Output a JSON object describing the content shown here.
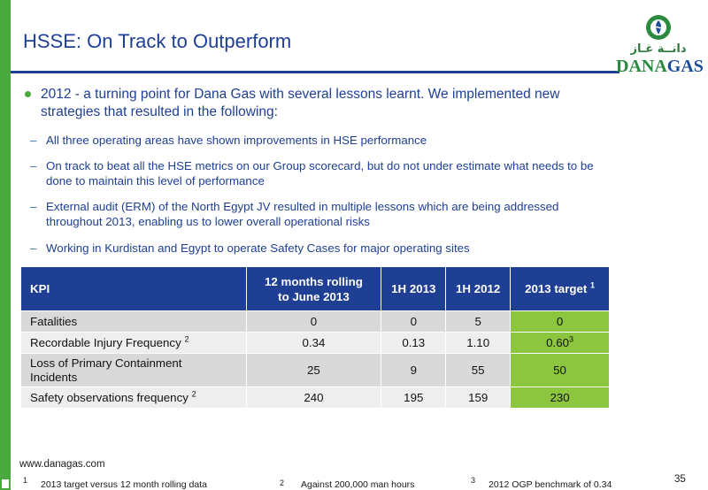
{
  "slide": {
    "title": "HSSE: On Track to Outperform",
    "page_number": "35",
    "website": "www.danagas.com",
    "colors": {
      "title_blue": "#1e3f93",
      "accent_green": "#4aa93d",
      "target_green": "#8cc63f"
    }
  },
  "logo": {
    "arabic": "دانــة غـاز",
    "word_dana": "DANA",
    "word_gas": "GAS"
  },
  "bullets": {
    "main": "2012 - a turning point for Dana Gas with several lessons learnt. We implemented new strategies that resulted in the following:",
    "dash": "–",
    "sub": [
      "All three operating areas have shown improvements in HSE performance",
      "On track to beat all the HSE metrics on our Group scorecard, but do not under estimate what needs to be done to maintain this level of performance",
      "External audit (ERM) of the North Egypt JV resulted in multiple lessons which are being addressed throughout 2013, enabling us to lower overall operational risks",
      "Working in Kurdistan and Egypt to operate Safety Cases for major operating sites"
    ]
  },
  "table": {
    "headers": {
      "kpi": "KPI",
      "rolling_line1": "12 months rolling",
      "rolling_line2": "to June 2013",
      "h1_2013": "1H 2013",
      "h1_2012": "1H 2012",
      "target": "2013 target",
      "target_sup": "1"
    },
    "rows": [
      {
        "kpi": "Fatalities",
        "kpi_sup": "",
        "rolling": "0",
        "h1_2013": "0",
        "h1_2012": "5",
        "target": "0",
        "target_sup": ""
      },
      {
        "kpi": "Recordable Injury Frequency",
        "kpi_sup": "2",
        "rolling": "0.34",
        "h1_2013": "0.13",
        "h1_2012": "1.10",
        "target": "0.60",
        "target_sup": "3"
      },
      {
        "kpi_line1": "Loss of Primary Containment",
        "kpi_line2": "Incidents",
        "rolling": "25",
        "h1_2013": "9",
        "h1_2012": "55",
        "target": "50"
      },
      {
        "kpi": "Safety observations frequency",
        "kpi_sup": "2",
        "rolling": "240",
        "h1_2013": "195",
        "h1_2012": "159",
        "target": "230",
        "target_sup": ""
      }
    ]
  },
  "footnotes": [
    {
      "mark": "1",
      "text": "2013 target versus 12 month rolling data"
    },
    {
      "mark": "2",
      "text": "Against 200,000 man hours"
    },
    {
      "mark": "3",
      "text": "2012 OGP benchmark of 0.34"
    }
  ]
}
